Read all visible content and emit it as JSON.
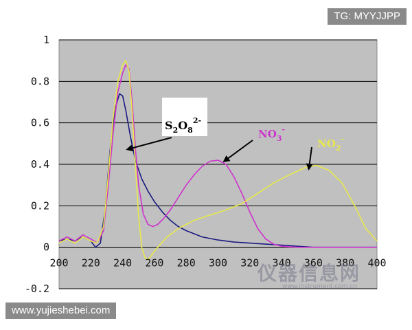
{
  "watermarks": {
    "top_right": "TG: MYYJJPP",
    "bottom_left": "www.yujieshebei.com",
    "logo": {
      "name": "仪器信息网",
      "url": "www.instrument.com.cn"
    }
  },
  "chart_data": {
    "type": "line",
    "title": "",
    "xlabel": "",
    "ylabel": "",
    "xlim": [
      200,
      400
    ],
    "ylim": [
      -0.2,
      1.0
    ],
    "x_ticks": [
      "200",
      "220",
      "240",
      "260",
      "280",
      "300",
      "320",
      "340",
      "360",
      "380",
      "400"
    ],
    "y_ticks": [
      "-0.2",
      "0",
      "0.2",
      "0.4",
      "0.6",
      "0.8",
      "1"
    ],
    "grid": "horizontal",
    "background": "#c0c0c0",
    "series": [
      {
        "name": "S2O8 2-",
        "label": {
          "base": "S",
          "sub1": "2",
          "mid": "O",
          "sub2": "8",
          "sup": "2-"
        },
        "color": "#1a1a80",
        "points": [
          [
            200,
            0.03
          ],
          [
            205,
            0.04
          ],
          [
            210,
            0.03
          ],
          [
            215,
            0.05
          ],
          [
            220,
            0.03
          ],
          [
            223,
            0.0
          ],
          [
            226,
            0.02
          ],
          [
            229,
            0.18
          ],
          [
            232,
            0.46
          ],
          [
            235,
            0.66
          ],
          [
            238,
            0.74
          ],
          [
            240,
            0.73
          ],
          [
            242,
            0.66
          ],
          [
            245,
            0.53
          ],
          [
            248,
            0.42
          ],
          [
            252,
            0.33
          ],
          [
            256,
            0.27
          ],
          [
            260,
            0.22
          ],
          [
            265,
            0.17
          ],
          [
            270,
            0.13
          ],
          [
            275,
            0.1
          ],
          [
            280,
            0.08
          ],
          [
            290,
            0.05
          ],
          [
            300,
            0.035
          ],
          [
            310,
            0.025
          ],
          [
            320,
            0.02
          ],
          [
            330,
            0.015
          ],
          [
            340,
            0.01
          ],
          [
            350,
            0.005
          ],
          [
            360,
            0.0
          ],
          [
            380,
            0.0
          ],
          [
            400,
            0.0
          ]
        ]
      },
      {
        "name": "NO3-",
        "label": {
          "base": "NO",
          "sub": "3",
          "sup": "-"
        },
        "color": "#cc33cc",
        "points": [
          [
            200,
            0.03
          ],
          [
            205,
            0.05
          ],
          [
            210,
            0.03
          ],
          [
            215,
            0.06
          ],
          [
            220,
            0.04
          ],
          [
            224,
            0.02
          ],
          [
            228,
            0.08
          ],
          [
            231,
            0.3
          ],
          [
            234,
            0.55
          ],
          [
            237,
            0.75
          ],
          [
            240,
            0.84
          ],
          [
            242,
            0.88
          ],
          [
            244,
            0.86
          ],
          [
            246,
            0.7
          ],
          [
            248,
            0.48
          ],
          [
            250,
            0.3
          ],
          [
            253,
            0.16
          ],
          [
            256,
            0.11
          ],
          [
            259,
            0.1
          ],
          [
            262,
            0.11
          ],
          [
            266,
            0.14
          ],
          [
            270,
            0.18
          ],
          [
            275,
            0.24
          ],
          [
            280,
            0.3
          ],
          [
            285,
            0.35
          ],
          [
            290,
            0.39
          ],
          [
            295,
            0.415
          ],
          [
            300,
            0.42
          ],
          [
            305,
            0.4
          ],
          [
            310,
            0.34
          ],
          [
            315,
            0.26
          ],
          [
            320,
            0.17
          ],
          [
            325,
            0.09
          ],
          [
            330,
            0.04
          ],
          [
            335,
            0.015
          ],
          [
            340,
            0.005
          ],
          [
            350,
            0.0
          ],
          [
            360,
            0.0
          ],
          [
            380,
            0.0
          ],
          [
            400,
            0.0
          ]
        ]
      },
      {
        "name": "NO2-",
        "label": {
          "base": "NO",
          "sub": "2",
          "sup": "-"
        },
        "color": "#e8e84a",
        "points": [
          [
            200,
            0.02
          ],
          [
            205,
            0.04
          ],
          [
            210,
            0.02
          ],
          [
            215,
            0.05
          ],
          [
            220,
            0.03
          ],
          [
            224,
            0.02
          ],
          [
            228,
            0.1
          ],
          [
            231,
            0.35
          ],
          [
            234,
            0.62
          ],
          [
            237,
            0.8
          ],
          [
            240,
            0.88
          ],
          [
            242,
            0.9
          ],
          [
            244,
            0.85
          ],
          [
            246,
            0.65
          ],
          [
            248,
            0.4
          ],
          [
            250,
            0.15
          ],
          [
            252,
            0.0
          ],
          [
            254,
            -0.05
          ],
          [
            256,
            -0.06
          ],
          [
            258,
            -0.04
          ],
          [
            262,
            0.0
          ],
          [
            268,
            0.05
          ],
          [
            275,
            0.09
          ],
          [
            285,
            0.13
          ],
          [
            295,
            0.155
          ],
          [
            305,
            0.18
          ],
          [
            315,
            0.21
          ],
          [
            325,
            0.26
          ],
          [
            335,
            0.31
          ],
          [
            345,
            0.35
          ],
          [
            355,
            0.385
          ],
          [
            362,
            0.395
          ],
          [
            370,
            0.37
          ],
          [
            378,
            0.31
          ],
          [
            386,
            0.2
          ],
          [
            393,
            0.09
          ],
          [
            400,
            0.03
          ]
        ]
      }
    ],
    "annotations": [
      {
        "series": "S2O8 2-",
        "arrow_to": [
          242,
          0.47
        ]
      },
      {
        "series": "NO3-",
        "arrow_to": [
          303,
          0.41
        ]
      },
      {
        "series": "NO2-",
        "arrow_to": [
          357,
          0.37
        ]
      }
    ]
  }
}
